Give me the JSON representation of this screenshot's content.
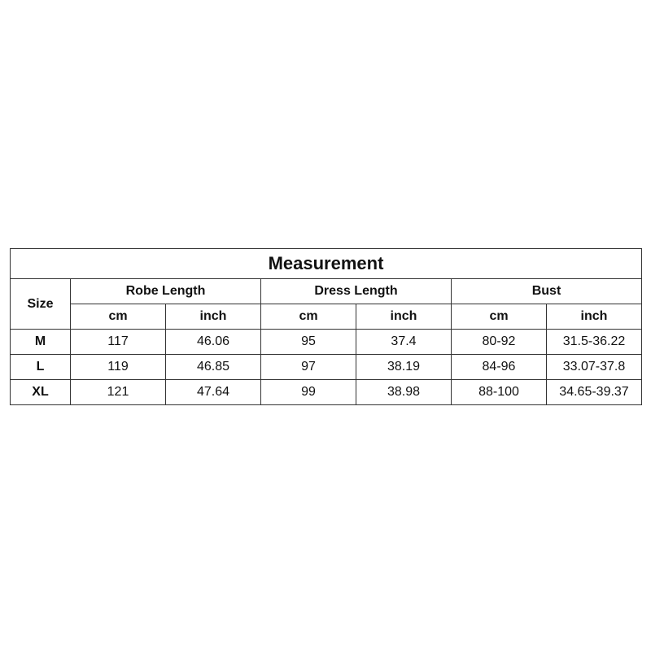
{
  "title": "Measurement",
  "size_header": "Size",
  "groups": [
    "Robe Length",
    "Dress Length",
    "Bust"
  ],
  "units": [
    "cm",
    "inch",
    "cm",
    "inch",
    "cm",
    "inch"
  ],
  "rows": [
    {
      "size": "M",
      "values": [
        "117",
        "46.06",
        "95",
        "37.4",
        "80-92",
        "31.5-36.22"
      ]
    },
    {
      "size": "L",
      "values": [
        "119",
        "46.85",
        "97",
        "38.19",
        "84-96",
        "33.07-37.8"
      ]
    },
    {
      "size": "XL",
      "values": [
        "121",
        "47.64",
        "99",
        "38.98",
        "88-100",
        "34.65-39.37"
      ]
    }
  ]
}
